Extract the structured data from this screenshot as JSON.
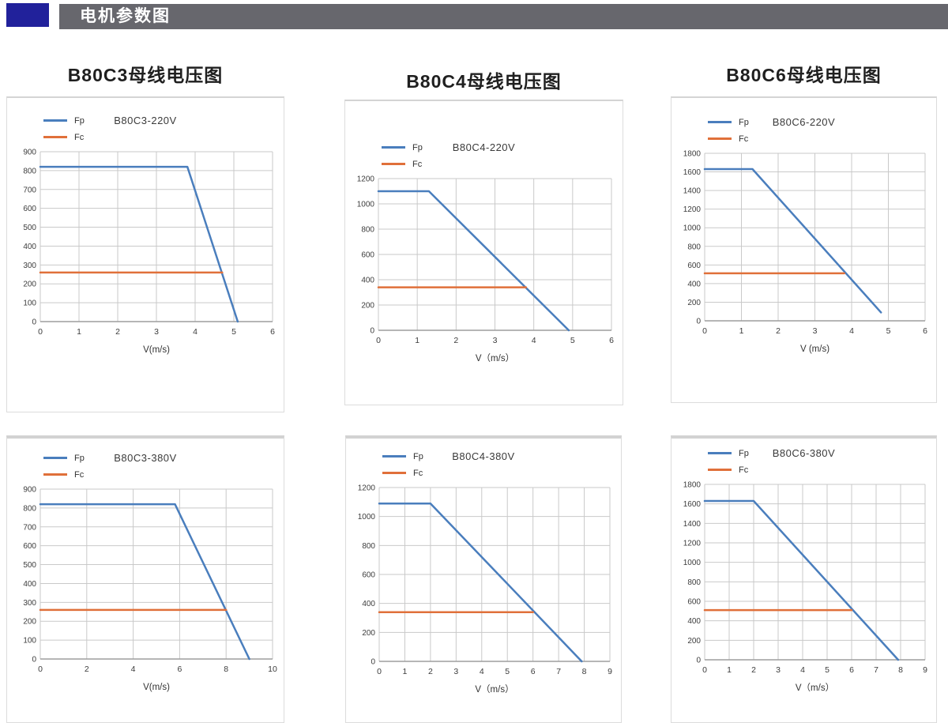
{
  "header": {
    "title": "电机参数图"
  },
  "sections": [
    {
      "title": "B80C3母线电压图"
    },
    {
      "title": "B80C4母线电压图"
    },
    {
      "title": "B80C6母线电压图"
    }
  ],
  "colors": {
    "header_bar": "#67676d",
    "header_accent": "#21219b",
    "fp": "#4a7ebd",
    "fc": "#e0703a",
    "grid": "#c9c9c9",
    "axis": "#9e9e9e",
    "tick_text": "#3c3c3c"
  },
  "chart_data": [
    {
      "type": "line",
      "title": "B80C3-220V",
      "xlabel": "V(m/s)",
      "legend": [
        "Fp",
        "Fc"
      ],
      "legend_position": "top-left",
      "grid": true,
      "xlim": [
        0,
        6
      ],
      "xstep": 1,
      "ylim": [
        0,
        900
      ],
      "ystep": 100,
      "series": [
        {
          "name": "Fp",
          "color": "#4a7ebd",
          "points": [
            [
              0,
              820
            ],
            [
              3.8,
              820
            ],
            [
              5.1,
              0
            ]
          ]
        },
        {
          "name": "Fc",
          "color": "#e0703a",
          "points": [
            [
              0,
              260
            ],
            [
              4.7,
              260
            ]
          ]
        }
      ]
    },
    {
      "type": "line",
      "title": "B80C4-220V",
      "xlabel": "V（m/s）",
      "legend": [
        "Fp",
        "Fc"
      ],
      "legend_position": "top-left",
      "grid": true,
      "xlim": [
        0,
        6
      ],
      "xstep": 1,
      "ylim": [
        0,
        1200
      ],
      "ystep": 200,
      "series": [
        {
          "name": "Fp",
          "color": "#4a7ebd",
          "points": [
            [
              0,
              1100
            ],
            [
              1.3,
              1100
            ],
            [
              4.9,
              0
            ]
          ]
        },
        {
          "name": "Fc",
          "color": "#e0703a",
          "points": [
            [
              0,
              340
            ],
            [
              3.8,
              340
            ]
          ]
        }
      ]
    },
    {
      "type": "line",
      "title": "B80C6-220V",
      "xlabel": "V (m/s)",
      "legend": [
        "Fp",
        "Fc"
      ],
      "legend_position": "top-left",
      "grid": true,
      "xlim": [
        0,
        6
      ],
      "xstep": 1,
      "ylim": [
        0,
        1800
      ],
      "ystep": 200,
      "series": [
        {
          "name": "Fp",
          "color": "#4a7ebd",
          "points": [
            [
              0,
              1630
            ],
            [
              1.3,
              1630
            ],
            [
              4.8,
              90
            ]
          ]
        },
        {
          "name": "Fc",
          "color": "#e0703a",
          "points": [
            [
              0,
              510
            ],
            [
              3.8,
              510
            ]
          ]
        }
      ]
    },
    {
      "type": "line",
      "title": "B80C3-380V",
      "xlabel": "V(m/s)",
      "legend": [
        "Fp",
        "Fc"
      ],
      "legend_position": "top-left",
      "grid": true,
      "xlim": [
        0,
        10
      ],
      "xstep": 2,
      "ylim": [
        0,
        900
      ],
      "ystep": 100,
      "series": [
        {
          "name": "Fp",
          "color": "#4a7ebd",
          "points": [
            [
              0,
              820
            ],
            [
              5.8,
              820
            ],
            [
              9,
              0
            ]
          ]
        },
        {
          "name": "Fc",
          "color": "#e0703a",
          "points": [
            [
              0,
              260
            ],
            [
              8,
              260
            ]
          ]
        }
      ]
    },
    {
      "type": "line",
      "title": "B80C4-380V",
      "xlabel": "V（m/s）",
      "legend": [
        "Fp",
        "Fc"
      ],
      "legend_position": "top-left",
      "grid": true,
      "xlim": [
        0,
        9
      ],
      "xstep": 1,
      "ylim": [
        0,
        1200
      ],
      "ystep": 200,
      "series": [
        {
          "name": "Fp",
          "color": "#4a7ebd",
          "points": [
            [
              0,
              1090
            ],
            [
              2,
              1090
            ],
            [
              7.9,
              0
            ]
          ]
        },
        {
          "name": "Fc",
          "color": "#e0703a",
          "points": [
            [
              0,
              340
            ],
            [
              6,
              340
            ]
          ]
        }
      ]
    },
    {
      "type": "line",
      "title": "B80C6-380V",
      "xlabel": "V（m/s）",
      "legend": [
        "Fp",
        "Fc"
      ],
      "legend_position": "top-left",
      "grid": true,
      "xlim": [
        0,
        9
      ],
      "xstep": 1,
      "ylim": [
        0,
        1800
      ],
      "ystep": 200,
      "series": [
        {
          "name": "Fp",
          "color": "#4a7ebd",
          "points": [
            [
              0,
              1630
            ],
            [
              2,
              1630
            ],
            [
              7.9,
              0
            ]
          ]
        },
        {
          "name": "Fc",
          "color": "#e0703a",
          "points": [
            [
              0,
              510
            ],
            [
              6,
              510
            ]
          ]
        }
      ]
    }
  ]
}
